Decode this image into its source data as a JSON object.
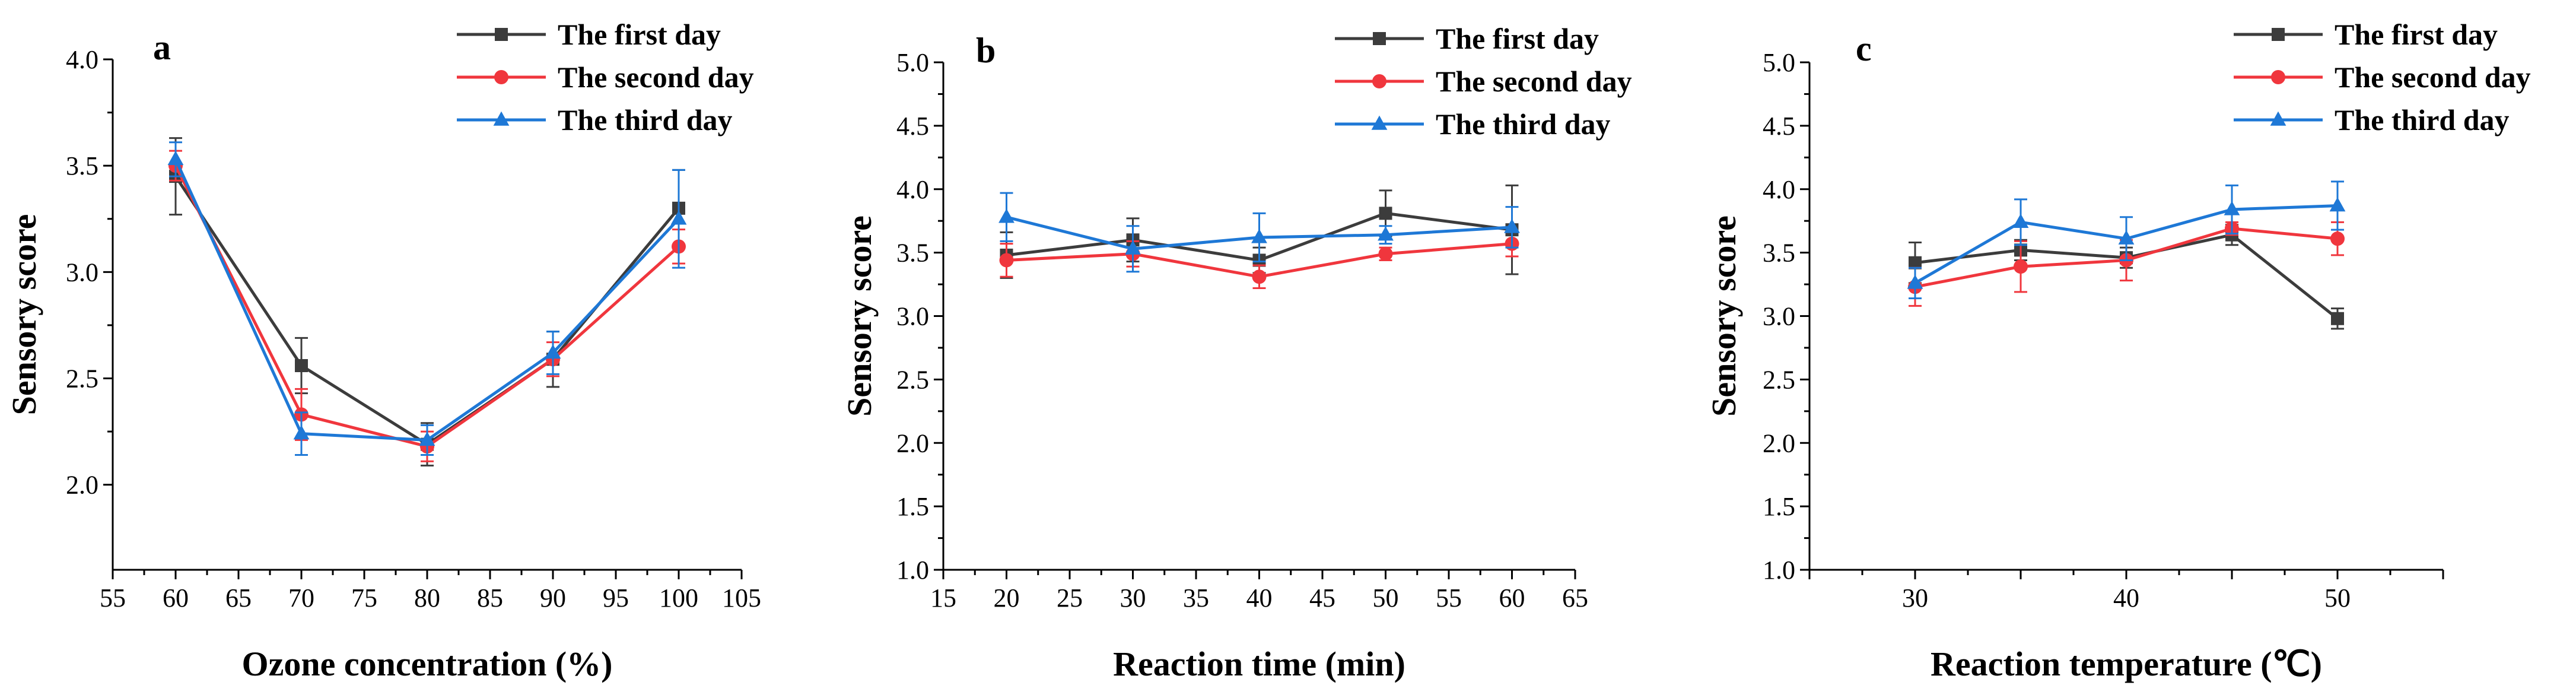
{
  "colors": {
    "first_day": "#3c3c3c",
    "second_day": "#f0363d",
    "third_day": "#1e78d6"
  },
  "chart_data": [
    {
      "type": "line",
      "panel_label": "a",
      "xlabel": "Ozone concentration (%)",
      "ylabel": "Sensory score",
      "xlim": [
        55,
        105
      ],
      "ylim": [
        1.6,
        4.0
      ],
      "xticks": [
        55,
        60,
        65,
        70,
        75,
        80,
        85,
        90,
        95,
        100,
        105
      ],
      "xtick_labels": [
        "55",
        "60",
        "65",
        "70",
        "75",
        "80",
        "85",
        "90",
        "95",
        "100",
        "105"
      ],
      "yticks": [
        2.0,
        2.5,
        3.0,
        3.5,
        4.0
      ],
      "ytick_labels": [
        "2.0",
        "2.5",
        "3.0",
        "3.5",
        "4.0"
      ],
      "x": [
        60,
        70,
        80,
        90,
        100
      ],
      "legend_position": "top-right",
      "series": [
        {
          "name": "The first day",
          "marker": "square",
          "color": "#3c3c3c",
          "values": [
            3.45,
            2.56,
            2.19,
            2.59,
            3.3
          ],
          "errors": [
            0.18,
            0.13,
            0.1,
            0.13,
            0.18
          ]
        },
        {
          "name": "The second day",
          "marker": "circle",
          "color": "#f0363d",
          "values": [
            3.5,
            2.33,
            2.18,
            2.59,
            3.12
          ],
          "errors": [
            0.07,
            0.12,
            0.07,
            0.08,
            0.08
          ]
        },
        {
          "name": "The third day",
          "marker": "triangle",
          "color": "#1e78d6",
          "values": [
            3.53,
            2.24,
            2.21,
            2.62,
            3.25
          ],
          "errors": [
            0.08,
            0.1,
            0.07,
            0.1,
            0.23
          ]
        }
      ]
    },
    {
      "type": "line",
      "panel_label": "b",
      "xlabel": "Reaction time (min)",
      "ylabel": "Sensory score",
      "xlim": [
        15,
        65
      ],
      "ylim": [
        1.0,
        5.0
      ],
      "xticks": [
        15,
        20,
        25,
        30,
        35,
        40,
        45,
        50,
        55,
        60,
        65
      ],
      "xtick_labels": [
        "15",
        "20",
        "25",
        "30",
        "35",
        "40",
        "45",
        "50",
        "55",
        "60",
        "65"
      ],
      "yticks": [
        1.0,
        1.5,
        2.0,
        2.5,
        3.0,
        3.5,
        4.0,
        4.5,
        5.0
      ],
      "ytick_labels": [
        "1.0",
        "1.5",
        "2.0",
        "2.5",
        "3.0",
        "3.5",
        "4.0",
        "4.5",
        "5.0"
      ],
      "x": [
        20,
        30,
        40,
        50,
        60
      ],
      "legend_position": "top-right",
      "series": [
        {
          "name": "The first day",
          "marker": "square",
          "color": "#3c3c3c",
          "values": [
            3.48,
            3.6,
            3.44,
            3.81,
            3.68
          ],
          "errors": [
            0.18,
            0.17,
            0.1,
            0.18,
            0.35
          ]
        },
        {
          "name": "The second day",
          "marker": "circle",
          "color": "#f0363d",
          "values": [
            3.44,
            3.49,
            3.31,
            3.49,
            3.57
          ],
          "errors": [
            0.13,
            0.1,
            0.09,
            0.05,
            0.1
          ]
        },
        {
          "name": "The third day",
          "marker": "triangle",
          "color": "#1e78d6",
          "values": [
            3.78,
            3.53,
            3.62,
            3.64,
            3.7
          ],
          "errors": [
            0.19,
            0.18,
            0.19,
            0.07,
            0.16
          ]
        }
      ]
    },
    {
      "type": "line",
      "panel_label": "c",
      "xlabel": "Reaction temperature (℃)",
      "ylabel": "Sensory score",
      "xlim": [
        25,
        55
      ],
      "ylim": [
        1.0,
        5.0
      ],
      "xticks": [
        25,
        30,
        35,
        40,
        45,
        50,
        55
      ],
      "xtick_labels": [
        "",
        "30",
        "",
        "40",
        "",
        "50",
        ""
      ],
      "yticks": [
        1.0,
        1.5,
        2.0,
        2.5,
        3.0,
        3.5,
        4.0,
        4.5,
        5.0
      ],
      "ytick_labels": [
        "1.0",
        "1.5",
        "2.0",
        "2.5",
        "3.0",
        "3.5",
        "4.0",
        "4.5",
        "5.0"
      ],
      "x": [
        30,
        35,
        40,
        45,
        50
      ],
      "legend_position": "top-right",
      "series": [
        {
          "name": "The first day",
          "marker": "square",
          "color": "#3c3c3c",
          "values": [
            3.42,
            3.52,
            3.46,
            3.64,
            2.98
          ],
          "errors": [
            0.16,
            0.08,
            0.08,
            0.08,
            0.08
          ]
        },
        {
          "name": "The second day",
          "marker": "circle",
          "color": "#f0363d",
          "values": [
            3.23,
            3.39,
            3.44,
            3.69,
            3.61
          ],
          "errors": [
            0.15,
            0.2,
            0.16,
            0.05,
            0.13
          ]
        },
        {
          "name": "The third day",
          "marker": "triangle",
          "color": "#1e78d6",
          "values": [
            3.26,
            3.74,
            3.61,
            3.84,
            3.87
          ],
          "errors": [
            0.12,
            0.18,
            0.17,
            0.19,
            0.19
          ]
        }
      ]
    }
  ]
}
